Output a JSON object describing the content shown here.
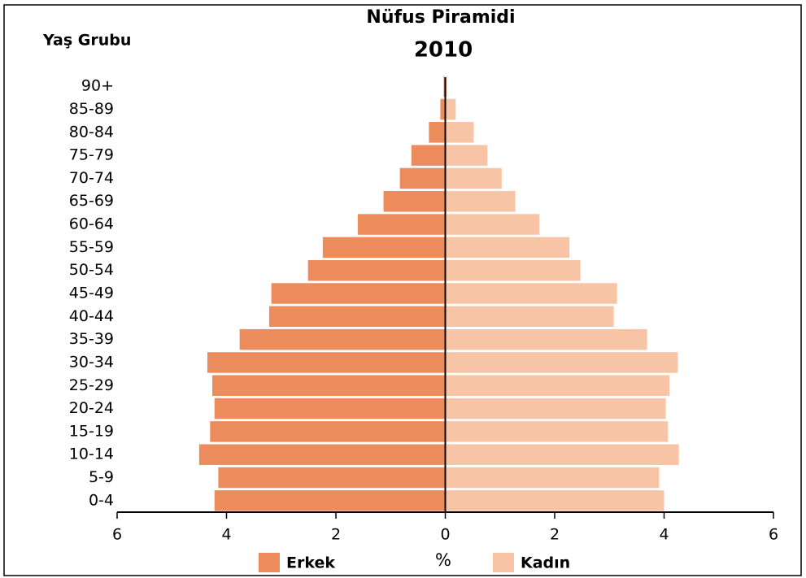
{
  "chart_data": {
    "type": "pyramid",
    "title": "Nüfus Piramidi",
    "subtitle": "2010",
    "y_label": "Yaş Grubu",
    "x_label": "%",
    "categories": [
      "0-4",
      "5-9",
      "10-14",
      "15-19",
      "20-24",
      "25-29",
      "30-34",
      "35-39",
      "40-44",
      "45-49",
      "50-54",
      "55-59",
      "60-64",
      "65-69",
      "70-74",
      "75-79",
      "80-84",
      "85-89",
      "90+"
    ],
    "series": [
      {
        "name": "Erkek",
        "color": "#ec8c5c",
        "values": [
          4.22,
          4.15,
          4.5,
          4.3,
          4.22,
          4.26,
          4.35,
          3.76,
          3.22,
          3.18,
          2.51,
          2.24,
          1.6,
          1.13,
          0.83,
          0.62,
          0.3,
          0.09,
          0.03
        ]
      },
      {
        "name": "Kadın",
        "color": "#f7c4a5",
        "values": [
          4.0,
          3.91,
          4.27,
          4.07,
          4.03,
          4.1,
          4.25,
          3.69,
          3.08,
          3.14,
          2.47,
          2.27,
          1.72,
          1.28,
          1.03,
          0.77,
          0.52,
          0.19,
          0.03
        ]
      }
    ],
    "xlim": [
      -6,
      6
    ],
    "xticks": [
      {
        "value": -6,
        "label": "6"
      },
      {
        "value": -4,
        "label": "4"
      },
      {
        "value": -2,
        "label": "2"
      },
      0,
      2,
      4,
      6
    ]
  }
}
